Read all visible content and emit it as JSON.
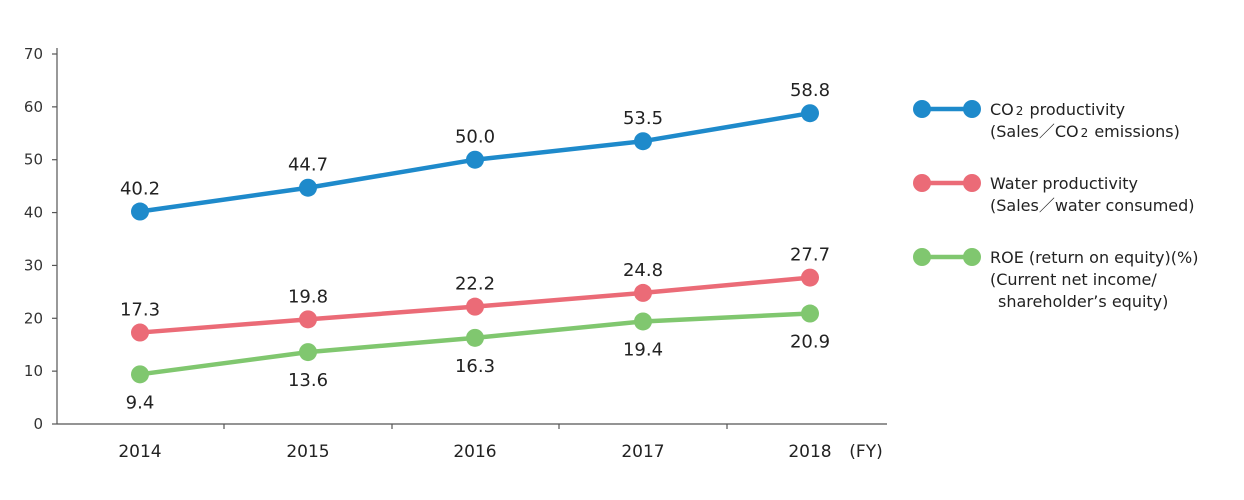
{
  "chart_data": {
    "type": "line",
    "categories": [
      "2014",
      "2015",
      "2016",
      "2017",
      "2018"
    ],
    "x_unit": "(FY)",
    "ylim": [
      0,
      70
    ],
    "yticks": [
      0,
      10,
      20,
      30,
      40,
      50,
      60,
      70
    ],
    "grid": false,
    "legend_position": "right",
    "series": [
      {
        "name": "CO2 productivity",
        "legend_line1_parts": [
          "CO",
          "2",
          " productivity"
        ],
        "legend_line2_parts": [
          "(Sales／CO",
          "2",
          " emissions)"
        ],
        "color": "#1E8ACB",
        "values": [
          40.2,
          44.7,
          50.0,
          53.5,
          58.8
        ],
        "labels": [
          "40.2",
          "44.7",
          "50.0",
          "53.5",
          "58.8"
        ],
        "label_position": "above"
      },
      {
        "name": "Water productivity",
        "legend_lines": [
          "Water productivity",
          "(Sales／water consumed)"
        ],
        "color": "#EB6B77",
        "values": [
          17.3,
          19.8,
          22.2,
          24.8,
          27.7
        ],
        "labels": [
          "17.3",
          "19.8",
          "22.2",
          "24.8",
          "27.7"
        ],
        "label_position": "above"
      },
      {
        "name": "ROE (return on equity)(%)",
        "legend_lines": [
          "ROE (return on equity)(%)",
          "(Current net income/",
          "shareholder’s equity)"
        ],
        "color": "#80C76F",
        "values": [
          9.4,
          13.6,
          16.3,
          19.4,
          20.9
        ],
        "labels": [
          "9.4",
          "13.6",
          "16.3",
          "19.4",
          "20.9"
        ],
        "label_position": "below"
      }
    ]
  }
}
